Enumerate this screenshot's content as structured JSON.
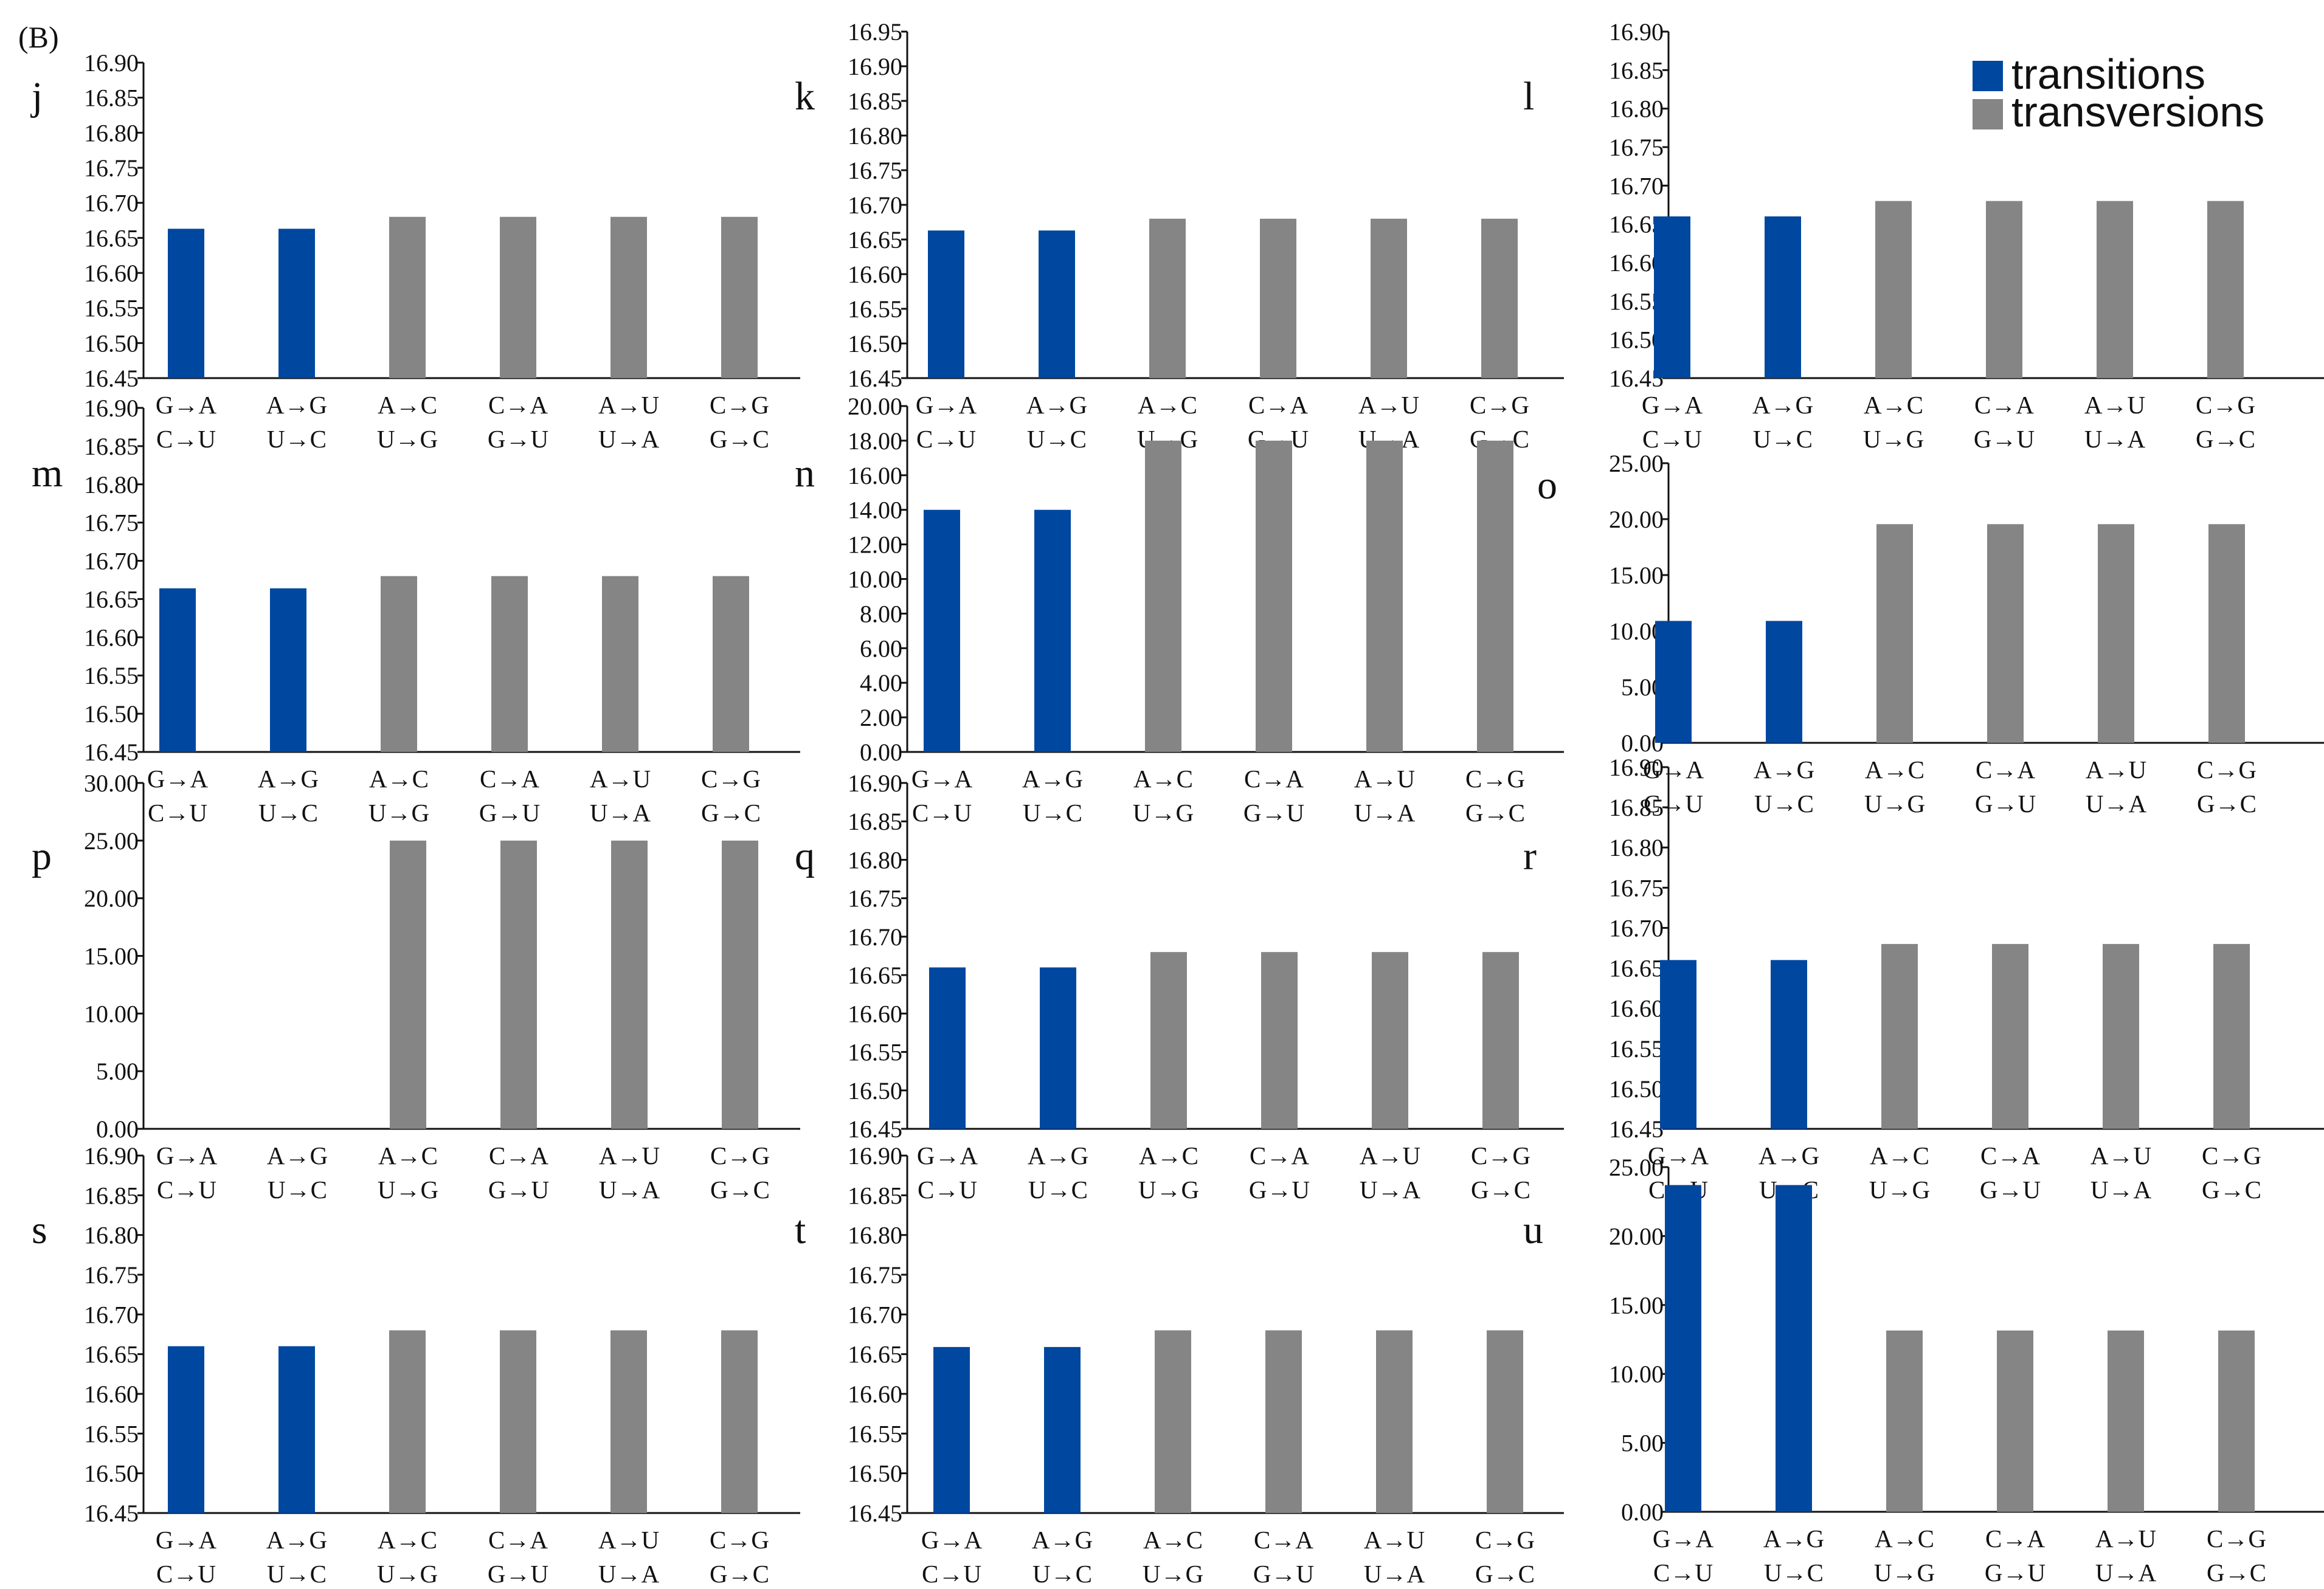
{
  "figure_label": "(B)",
  "legend": {
    "items": [
      {
        "label": "transitions",
        "color": "#0047A0"
      },
      {
        "label": "transversions",
        "color": "#858585"
      }
    ]
  },
  "chart_data": [
    {
      "panel": "j",
      "type": "bar",
      "categories": [
        [
          "G→A",
          "C→U"
        ],
        [
          "A→G",
          "U→C"
        ],
        [
          "A→C",
          "U→G"
        ],
        [
          "C→A",
          "G→U"
        ],
        [
          "A→U",
          "U→A"
        ],
        [
          "C→G",
          "G→C"
        ]
      ],
      "values": [
        16.663,
        16.663,
        16.68,
        16.68,
        16.68,
        16.68
      ],
      "ylim": [
        16.45,
        16.9
      ],
      "yticks": [
        "16.45",
        "16.50",
        "16.55",
        "16.60",
        "16.65",
        "16.70",
        "16.75",
        "16.80",
        "16.85",
        "16.90"
      ]
    },
    {
      "panel": "k",
      "type": "bar",
      "categories": [
        [
          "G→A",
          "C→U"
        ],
        [
          "A→G",
          "U→C"
        ],
        [
          "A→C",
          "U→G"
        ],
        [
          "C→A",
          "G→U"
        ],
        [
          "A→U",
          "U→A"
        ],
        [
          "C→G",
          "G→C"
        ]
      ],
      "values": [
        16.663,
        16.663,
        16.68,
        16.68,
        16.68,
        16.68
      ],
      "ylim": [
        16.45,
        16.95
      ],
      "yticks": [
        "16.45",
        "16.50",
        "16.55",
        "16.60",
        "16.65",
        "16.70",
        "16.75",
        "16.80",
        "16.85",
        "16.90",
        "16.95"
      ]
    },
    {
      "panel": "l",
      "type": "bar",
      "categories": [
        [
          "G→A",
          "C→U"
        ],
        [
          "A→G",
          "U→C"
        ],
        [
          "A→C",
          "U→G"
        ],
        [
          "C→A",
          "G→U"
        ],
        [
          "A→U",
          "U→A"
        ],
        [
          "C→G",
          "G→C"
        ]
      ],
      "values": [
        16.66,
        16.66,
        16.68,
        16.68,
        16.68,
        16.68
      ],
      "ylim": [
        16.45,
        16.9
      ],
      "yticks": [
        "16.45",
        "16.50",
        "16.55",
        "16.60",
        "16.65",
        "16.70",
        "16.75",
        "16.80",
        "16.85",
        "16.90"
      ]
    },
    {
      "panel": "m",
      "type": "bar",
      "categories": [
        [
          "G→A",
          "C→U"
        ],
        [
          "A→G",
          "U→C"
        ],
        [
          "A→C",
          "U→G"
        ],
        [
          "C→A",
          "G→U"
        ],
        [
          "A→U",
          "U→A"
        ],
        [
          "C→G",
          "G→C"
        ]
      ],
      "values": [
        16.664,
        16.664,
        16.68,
        16.68,
        16.68,
        16.68
      ],
      "ylim": [
        16.45,
        16.9
      ],
      "yticks": [
        "16.45",
        "16.50",
        "16.55",
        "16.60",
        "16.65",
        "16.70",
        "16.75",
        "16.80",
        "16.85",
        "16.90"
      ]
    },
    {
      "panel": "n",
      "type": "bar",
      "categories": [
        [
          "G→A",
          "C→U"
        ],
        [
          "A→G",
          "U→C"
        ],
        [
          "A→C",
          "U→G"
        ],
        [
          "C→A",
          "G→U"
        ],
        [
          "A→U",
          "U→A"
        ],
        [
          "C→G",
          "G→C"
        ]
      ],
      "values": [
        14.0,
        14.0,
        18.0,
        18.0,
        18.0,
        18.0
      ],
      "ylim": [
        0,
        20
      ],
      "yticks": [
        "0.00",
        "2.00",
        "4.00",
        "6.00",
        "8.00",
        "10.00",
        "12.00",
        "14.00",
        "16.00",
        "18.00",
        "20.00"
      ]
    },
    {
      "panel": "o",
      "type": "bar",
      "categories": [
        [
          "G→A",
          "C→U"
        ],
        [
          "A→G",
          "U→C"
        ],
        [
          "A→C",
          "U→G"
        ],
        [
          "C→A",
          "G→U"
        ],
        [
          "A→U",
          "U→A"
        ],
        [
          "C→G",
          "G→C"
        ]
      ],
      "values": [
        10.9,
        10.9,
        19.55,
        19.55,
        19.55,
        19.55
      ],
      "ylim": [
        0,
        25
      ],
      "yticks": [
        "0.00",
        "5.00",
        "10.00",
        "15.00",
        "20.00",
        "25.00"
      ]
    },
    {
      "panel": "p",
      "type": "bar",
      "categories": [
        [
          "G→A",
          "C→U"
        ],
        [
          "A→G",
          "U→C"
        ],
        [
          "A→C",
          "U→G"
        ],
        [
          "C→A",
          "G→U"
        ],
        [
          "A→U",
          "U→A"
        ],
        [
          "C→G",
          "G→C"
        ]
      ],
      "values": [
        0,
        0,
        25.0,
        25.0,
        25.0,
        25.0
      ],
      "ylim": [
        0,
        30
      ],
      "yticks": [
        "0.00",
        "5.00",
        "10.00",
        "15.00",
        "20.00",
        "25.00",
        "30.00"
      ]
    },
    {
      "panel": "q",
      "type": "bar",
      "categories": [
        [
          "G→A",
          "C→U"
        ],
        [
          "A→G",
          "U→C"
        ],
        [
          "A→C",
          "U→G"
        ],
        [
          "C→A",
          "G→U"
        ],
        [
          "A→U",
          "U→A"
        ],
        [
          "C→G",
          "G→C"
        ]
      ],
      "values": [
        16.66,
        16.66,
        16.68,
        16.68,
        16.68,
        16.68
      ],
      "ylim": [
        16.45,
        16.9
      ],
      "yticks": [
        "16.45",
        "16.50",
        "16.55",
        "16.60",
        "16.65",
        "16.70",
        "16.75",
        "16.80",
        "16.85",
        "16.90"
      ]
    },
    {
      "panel": "r",
      "type": "bar",
      "categories": [
        [
          "G→A",
          "C→U"
        ],
        [
          "A→G",
          "U→C"
        ],
        [
          "A→C",
          "U→G"
        ],
        [
          "C→A",
          "G→U"
        ],
        [
          "A→U",
          "U→A"
        ],
        [
          "C→G",
          "G→C"
        ]
      ],
      "values": [
        16.66,
        16.66,
        16.68,
        16.68,
        16.68,
        16.68
      ],
      "ylim": [
        16.45,
        16.9
      ],
      "yticks": [
        "16.45",
        "16.50",
        "16.55",
        "16.60",
        "16.65",
        "16.70",
        "16.75",
        "16.80",
        "16.85",
        "16.90"
      ]
    },
    {
      "panel": "s",
      "type": "bar",
      "categories": [
        [
          "G→A",
          "C→U"
        ],
        [
          "A→G",
          "U→C"
        ],
        [
          "A→C",
          "U→G"
        ],
        [
          "C→A",
          "G→U"
        ],
        [
          "A→U",
          "U→A"
        ],
        [
          "C→G",
          "G→C"
        ]
      ],
      "values": [
        16.66,
        16.66,
        16.68,
        16.68,
        16.68,
        16.68
      ],
      "ylim": [
        16.45,
        16.9
      ],
      "yticks": [
        "16.45",
        "16.50",
        "16.55",
        "16.60",
        "16.65",
        "16.70",
        "16.75",
        "16.80",
        "16.85",
        "16.90"
      ]
    },
    {
      "panel": "t",
      "type": "bar",
      "categories": [
        [
          "G→A",
          "C→U"
        ],
        [
          "A→G",
          "U→C"
        ],
        [
          "A→C",
          "U→G"
        ],
        [
          "C→A",
          "G→U"
        ],
        [
          "A→U",
          "U→A"
        ],
        [
          "C→G",
          "G→C"
        ]
      ],
      "values": [
        16.659,
        16.659,
        16.68,
        16.68,
        16.68,
        16.68
      ],
      "ylim": [
        16.45,
        16.9
      ],
      "yticks": [
        "16.45",
        "16.50",
        "16.55",
        "16.60",
        "16.65",
        "16.70",
        "16.75",
        "16.80",
        "16.85",
        "16.90"
      ]
    },
    {
      "panel": "u",
      "type": "bar",
      "categories": [
        [
          "G→A",
          "C→U"
        ],
        [
          "A→G",
          "U→C"
        ],
        [
          "A→C",
          "U→G"
        ],
        [
          "C→A",
          "G→U"
        ],
        [
          "A→U",
          "U→A"
        ],
        [
          "C→G",
          "G→C"
        ]
      ],
      "values": [
        23.7,
        23.7,
        13.15,
        13.15,
        13.15,
        13.15
      ],
      "ylim": [
        0,
        25
      ],
      "yticks": [
        "0.00",
        "5.00",
        "10.00",
        "15.00",
        "20.00",
        "25.00"
      ]
    }
  ]
}
